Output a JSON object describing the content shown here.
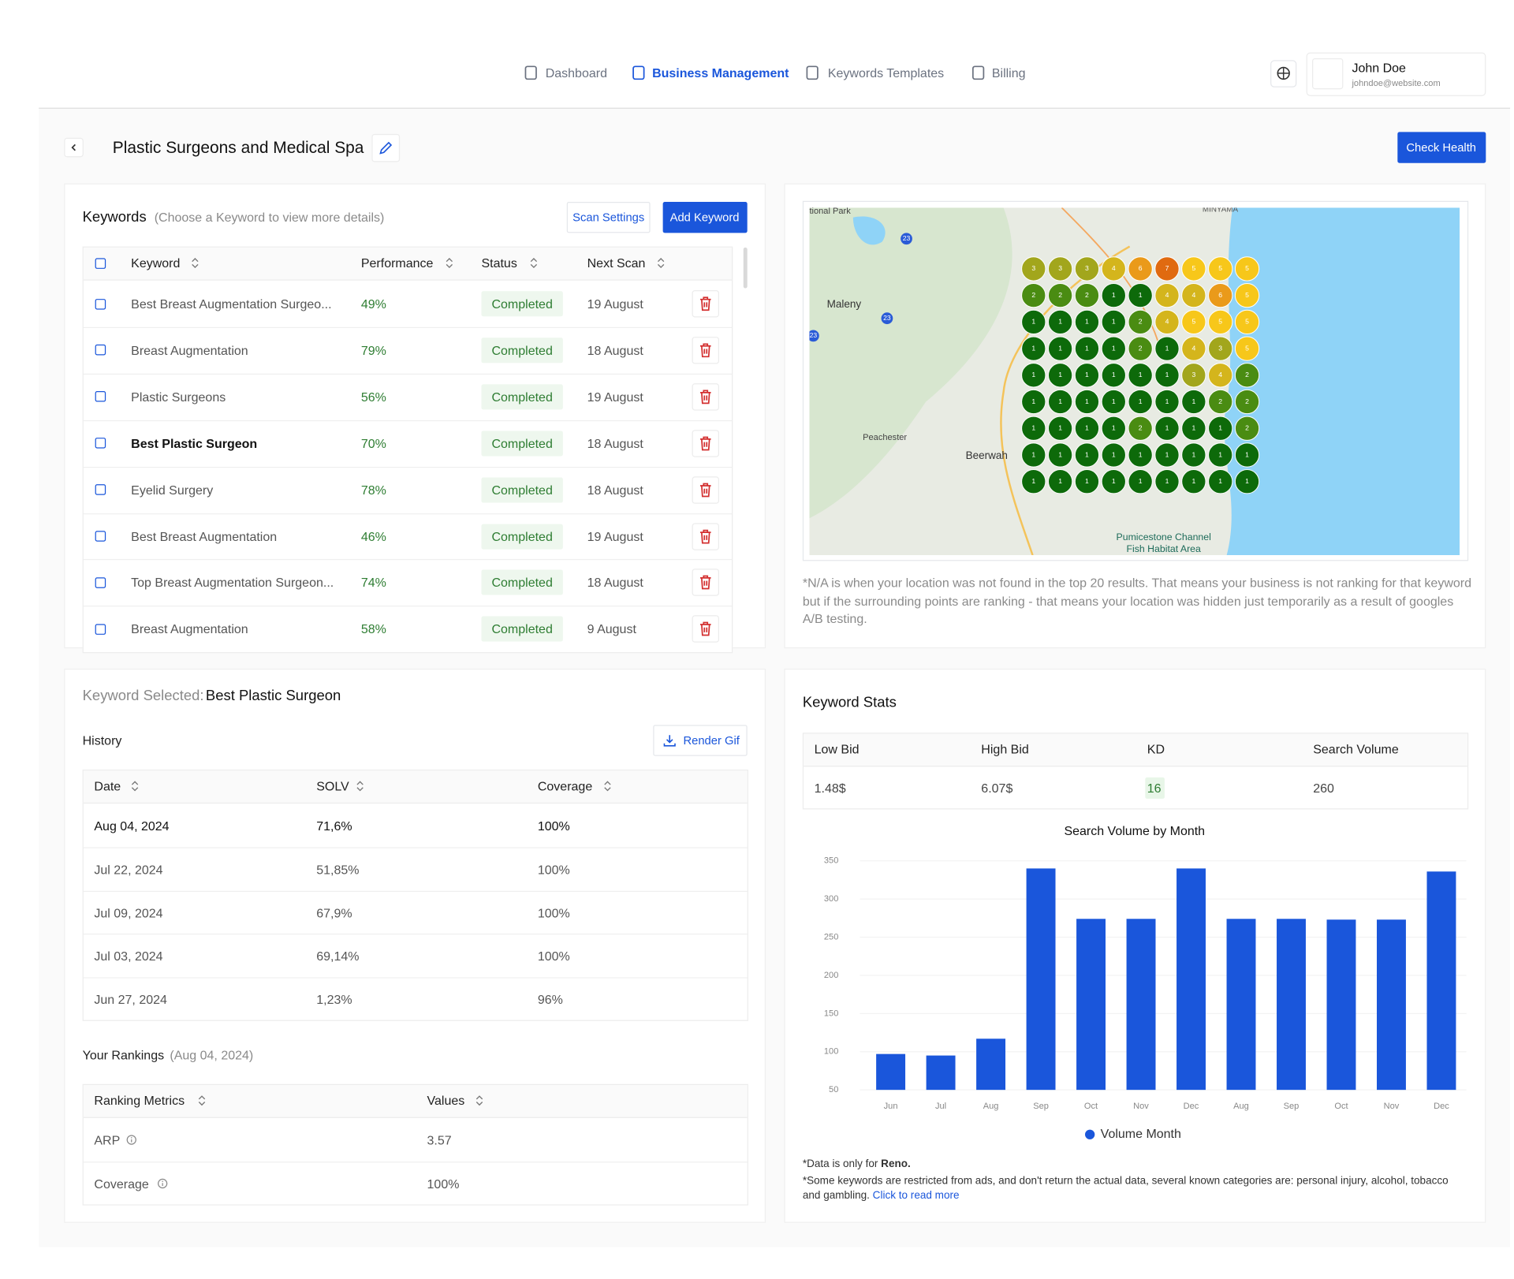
{
  "nav": {
    "items": [
      "Dashboard",
      "Business Management",
      "Keywords Templates",
      "Billing"
    ]
  },
  "user": {
    "name": "John Doe",
    "email": "johndoe@website.com"
  },
  "page": {
    "title": "Plastic Surgeons and Medical Spa",
    "button": "Check Health"
  },
  "keywords": {
    "title": "Keywords",
    "hint": "(Choose a Keyword to view more details)",
    "buttons": [
      "Scan Settings",
      "Add Keyword"
    ],
    "columns": [
      "Keyword",
      "Performance",
      "Status",
      "Next Scan"
    ],
    "rows": [
      [
        "Best Breast Augmentation Surgeo...",
        "49%",
        "Completed",
        "19 August"
      ],
      [
        "Breast Augmentation",
        "79%",
        "Completed",
        "18 August"
      ],
      [
        "Plastic Surgeons",
        "56%",
        "Completed",
        "19 August"
      ],
      [
        "Best Plastic Surgeon",
        "70%",
        "Completed",
        "18 August"
      ],
      [
        "Eyelid Surgery",
        "78%",
        "Completed",
        "18 August"
      ],
      [
        "Best Breast Augmentation",
        "46%",
        "Completed",
        "19 August"
      ],
      [
        "Top Breast Augmentation Surgeon...",
        "74%",
        "Completed",
        "18 August"
      ],
      [
        "Breast Augmentation",
        "58%",
        "Completed",
        "9 August"
      ]
    ]
  },
  "map": {
    "labels": [
      "tional Park",
      "MINYAMA",
      "Maleny",
      "Peachester",
      "Beerwah",
      "Pumicestone Channel",
      "Fish Habitat Area",
      "23",
      "23",
      "23"
    ],
    "grid": [
      [
        3,
        3,
        3,
        4,
        6,
        7,
        5,
        5,
        5
      ],
      [
        2,
        2,
        2,
        1,
        1,
        4,
        4,
        6,
        5
      ],
      [
        1,
        1,
        1,
        1,
        2,
        4,
        5,
        5,
        5
      ],
      [
        1,
        1,
        1,
        1,
        2,
        1,
        4,
        3,
        5
      ],
      [
        1,
        1,
        1,
        1,
        1,
        1,
        3,
        4,
        2
      ],
      [
        1,
        1,
        1,
        1,
        1,
        1,
        1,
        2,
        2
      ],
      [
        1,
        1,
        1,
        1,
        2,
        1,
        1,
        1,
        2
      ],
      [
        1,
        1,
        1,
        1,
        1,
        1,
        1,
        1,
        1
      ],
      [
        1,
        1,
        1,
        1,
        1,
        1,
        1,
        1,
        1
      ]
    ],
    "note": "*N/A is when your location was not found in the top 20 results. That means your business is not ranking for that keyword but if the surrounding points are ranking - that means your location was hidden just temporarily as a result of googles A/B testing."
  },
  "selected": {
    "label": "Keyword Selected:",
    "keyword": "Best Plastic Surgeon"
  },
  "history": {
    "title": "History",
    "button": "Render Gif",
    "columns": [
      "Date",
      "SOLV",
      "Coverage"
    ],
    "rows": [
      [
        "Aug 04, 2024",
        "71,6%",
        "100%"
      ],
      [
        "Jul 22, 2024",
        "51,85%",
        "100%"
      ],
      [
        "Jul 09, 2024",
        "67,9%",
        "100%"
      ],
      [
        "Jul 03, 2024",
        "69,14%",
        "100%"
      ],
      [
        "Jun 27, 2024",
        "1,23%",
        "96%"
      ]
    ]
  },
  "rankings": {
    "title": "Your Rankings",
    "date": "(Aug 04, 2024)",
    "columns": [
      "Ranking Metrics",
      "Values"
    ],
    "rows": [
      [
        "ARP",
        "3.57"
      ],
      [
        "Coverage",
        "100%"
      ]
    ]
  },
  "stats": {
    "title": "Keyword Stats",
    "columns": [
      "Low Bid",
      "High Bid",
      "KD",
      "Search Volume"
    ],
    "values": [
      "1.48$",
      "6.07$",
      "16",
      "260"
    ]
  },
  "chart_data": {
    "type": "bar",
    "title": "Search Volume by Month",
    "categories": [
      "Jun",
      "Jul",
      "Aug",
      "Sep",
      "Oct",
      "Nov",
      "Dec",
      "Aug",
      "Sep",
      "Oct",
      "Nov",
      "Dec"
    ],
    "series": [
      {
        "name": "Volume Month",
        "color": "#1a56db",
        "values": [
          97,
          95,
          117,
          340,
          274,
          274,
          340,
          274,
          274,
          273,
          273,
          336
        ]
      }
    ],
    "ylim": [
      50,
      350
    ],
    "yticks": [
      50,
      100,
      150,
      200,
      250,
      300,
      350
    ]
  },
  "footnotes": {
    "data_prefix": "*Data is only for",
    "city": "Reno.",
    "restricted": "*Some keywords are restricted from ads, and don't return the actual data, several known categories are: personal injury, alcohol, tobacco and gambling.",
    "link": "Click to read more"
  }
}
